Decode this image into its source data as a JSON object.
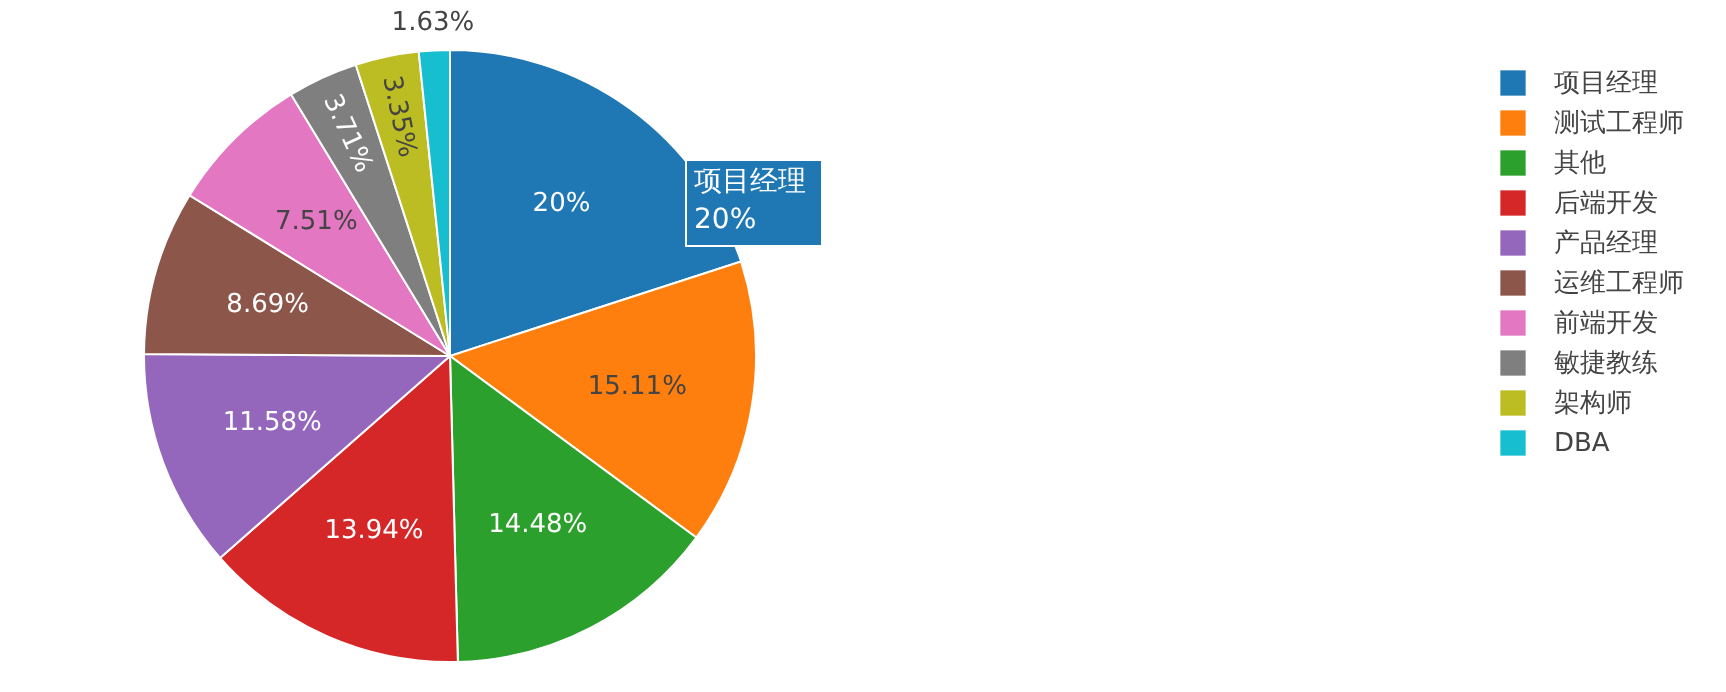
{
  "chart_data": {
    "type": "pie",
    "categories": [
      "项目经理",
      "测试工程师",
      "其他",
      "后端开发",
      "产品经理",
      "运维工程师",
      "前端开发",
      "敏捷教练",
      "架构师",
      "DBA"
    ],
    "values": [
      20,
      15.11,
      14.48,
      13.94,
      11.58,
      8.69,
      7.51,
      3.71,
      3.35,
      1.63
    ],
    "colors": [
      "#1f77b4",
      "#ff7f0e",
      "#2ca02c",
      "#d62728",
      "#9467bd",
      "#8c564b",
      "#e377c2",
      "#7f7f7f",
      "#bcbd22",
      "#17becf"
    ],
    "value_labels": [
      "20%",
      "15.11%",
      "14.48%",
      "13.94%",
      "11.58%",
      "8.69%",
      "7.51%",
      "3.71%",
      "3.35%",
      "1.63%"
    ],
    "legend": "top right",
    "annotations": [
      "项目经理 20%"
    ]
  }
}
